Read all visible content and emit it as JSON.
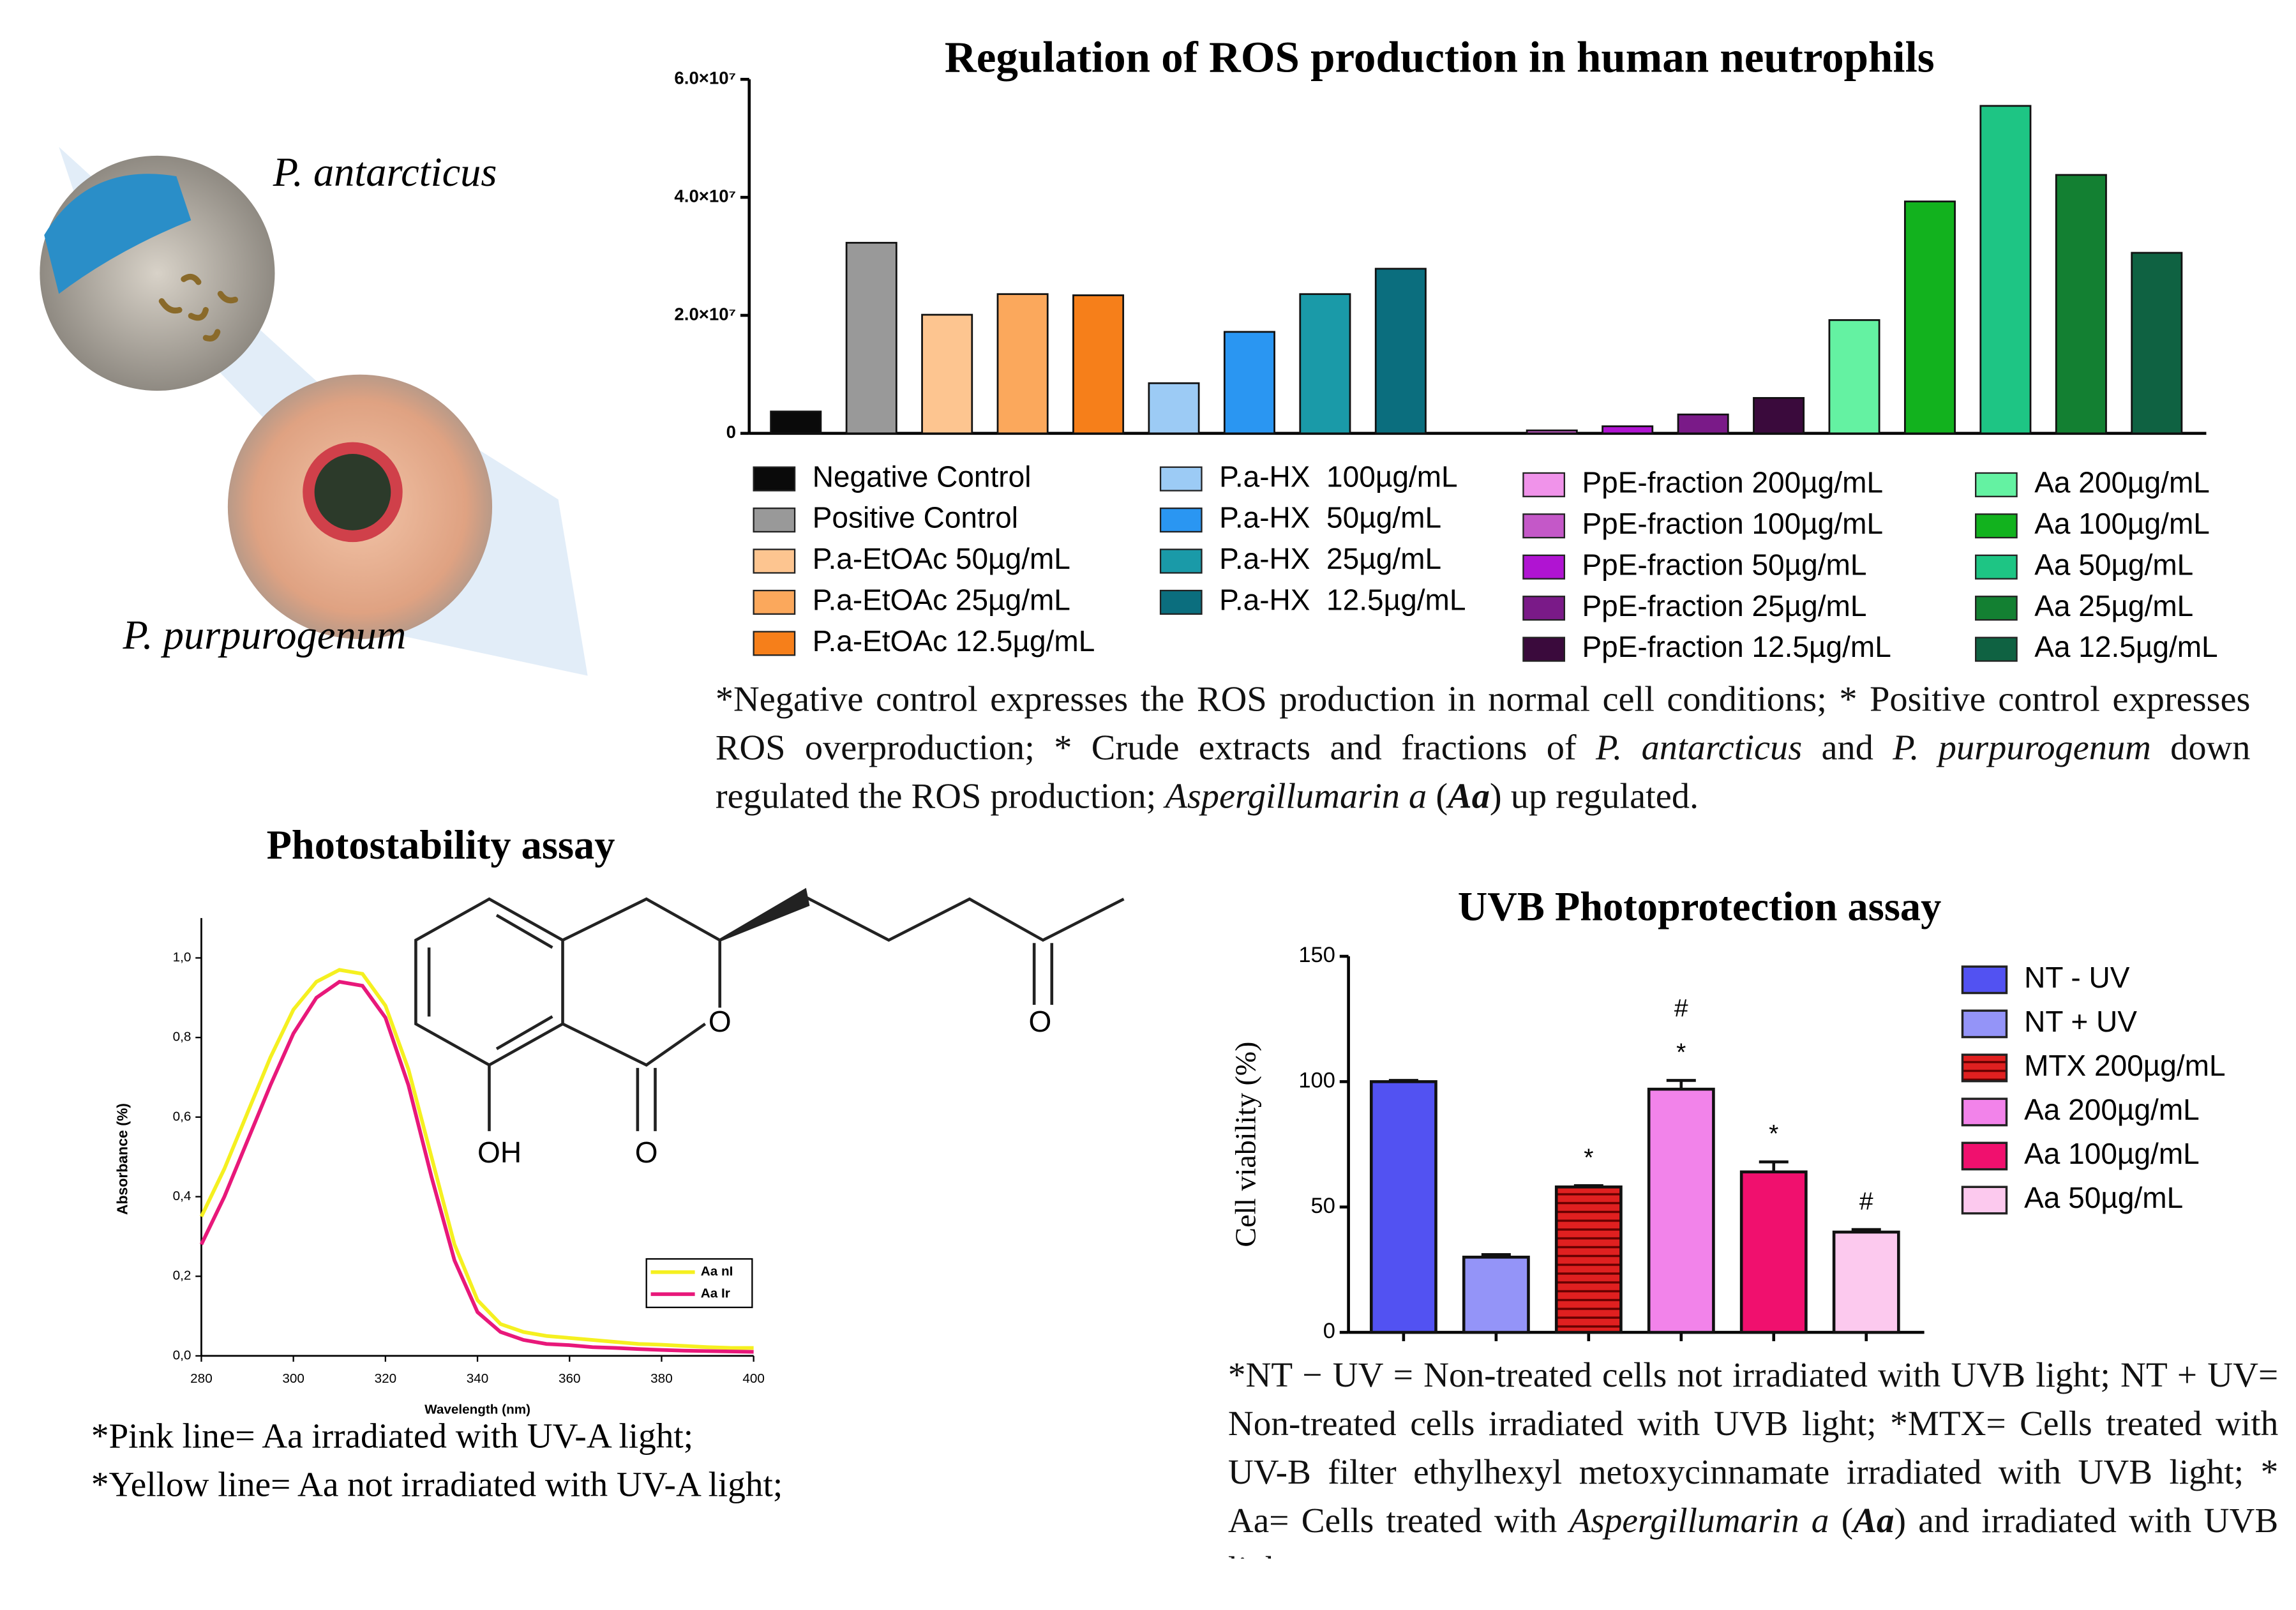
{
  "illustration": {
    "labels": [
      "P. antarcticus",
      "P. purpurogenum"
    ]
  },
  "structure": {
    "atoms": [
      "OH",
      "O",
      "O",
      "O"
    ]
  },
  "chart_data": [
    {
      "type": "bar",
      "title": "Regulation of ROS production in human neutrophils",
      "categories": [
        "Negative Control",
        "Positive Control",
        "P.a-EtOAc 50µg/mL",
        "P.a-EtOAc 25µg/mL",
        "P.a-EtOAc 12.5µg/mL",
        "P.a-HX  100µg/mL",
        "P.a-HX  50µg/mL",
        "P.a-HX  25µg/mL",
        "P.a-HX  12.5µg/mL",
        "PpE-fraction 200µg/mL",
        "PpE-fraction 100µg/mL",
        "PpE-fraction 50µg/mL",
        "PpE-fraction 25µg/mL",
        "PpE-fraction 12.5µg/mL",
        "Aa 200µg/mL",
        "Aa 100µg/mL",
        "Aa 50µg/mL",
        "Aa 25µg/mL",
        "Aa 12.5µg/mL"
      ],
      "values": [
        3700000,
        32300000,
        20100000,
        23600000,
        23400000,
        8500000,
        17200000,
        23600000,
        27900000,
        0,
        500000,
        1200000,
        3200000,
        6000000,
        19200000,
        39300000,
        55500000,
        43800000,
        30600000
      ],
      "colors": [
        "#0a0a0a",
        "#999999",
        "#fdc590",
        "#fba85c",
        "#f67f1a",
        "#9ccbf5",
        "#2a96f2",
        "#1a9aa8",
        "#0b6e7e",
        "#f093ea",
        "#c458c8",
        "#b014d2",
        "#7a1a88",
        "#3a0a3c",
        "#64f2a2",
        "#12b21e",
        "#1ec584",
        "#138032",
        "#0f6242"
      ],
      "ylim": [
        0,
        60000000
      ],
      "yticks": [
        0,
        {
          "value": 20000000,
          "label": "2.0×10⁷"
        },
        {
          "value": 40000000,
          "label": "4.0×10⁷"
        },
        {
          "value": 60000000,
          "label": "6.0×10⁷"
        }
      ],
      "legend": "bottom",
      "note": [
        {
          "text": "*Negative control expresses the ROS production in normal cell conditions; * Positive control expresses ROS overproduction; * Crude extracts and fractions of "
        },
        {
          "text": "P. antarcticus",
          "style": "italic"
        },
        {
          "text": " and "
        },
        {
          "text": "P. purpurogenum",
          "style": "italic"
        },
        {
          "text": " down regulated the ROS production; "
        },
        {
          "text": "Aspergillumarin a",
          "style": "italic"
        },
        {
          "text": " ("
        },
        {
          "text": "Aa",
          "style": "bold-italic"
        },
        {
          "text": ") up regulated."
        }
      ]
    },
    {
      "type": "line",
      "title": "Photostability assay",
      "xlabel": "Wavelength (nm)",
      "ylabel": "Absorbance (%)",
      "x": [
        280,
        285,
        290,
        295,
        300,
        305,
        310,
        315,
        320,
        325,
        330,
        335,
        340,
        345,
        350,
        355,
        360,
        365,
        370,
        375,
        380,
        385,
        390,
        395,
        400
      ],
      "series": [
        {
          "name": "Aa nI",
          "color": "#f5f020",
          "values": [
            0.35,
            0.47,
            0.61,
            0.75,
            0.87,
            0.94,
            0.97,
            0.96,
            0.88,
            0.72,
            0.5,
            0.28,
            0.14,
            0.08,
            0.06,
            0.05,
            0.045,
            0.04,
            0.035,
            0.03,
            0.028,
            0.025,
            0.022,
            0.02,
            0.02
          ]
        },
        {
          "name": "Aa Ir",
          "color": "#e8187a",
          "values": [
            0.28,
            0.4,
            0.54,
            0.68,
            0.81,
            0.9,
            0.94,
            0.93,
            0.85,
            0.68,
            0.45,
            0.24,
            0.11,
            0.06,
            0.04,
            0.03,
            0.027,
            0.022,
            0.02,
            0.017,
            0.015,
            0.013,
            0.012,
            0.011,
            0.01
          ]
        }
      ],
      "xlim": [
        280,
        400
      ],
      "xticks": [
        280,
        300,
        320,
        340,
        360,
        380,
        400
      ],
      "ylim": [
        0,
        1.1
      ],
      "yticks": [
        {
          "value": 0,
          "label": "0,0"
        },
        {
          "value": 0.2,
          "label": "0,2"
        },
        {
          "value": 0.4,
          "label": "0,4"
        },
        {
          "value": 0.6,
          "label": "0,6"
        },
        {
          "value": 0.8,
          "label": "0,8"
        },
        {
          "value": 1,
          "label": "1,0"
        }
      ],
      "legend": "lower right",
      "notes": [
        "*Pink line= Aa irradiated with UV-A light;",
        "*Yellow line= Aa not irradiated with UV-A light;"
      ]
    },
    {
      "type": "bar",
      "title": "UVB Photoprotection assay",
      "ylabel": "Cell viability (%)",
      "categories": [
        "NT - UV",
        "NT + UV",
        "MTX 200µg/mL",
        "Aa 200µg/mL",
        "Aa 100µg/mL",
        "Aa 50µg/mL"
      ],
      "values": [
        100,
        30,
        58,
        97,
        64,
        40
      ],
      "errors": [
        0.5,
        1,
        0.5,
        3.5,
        4,
        1
      ],
      "colors": [
        "#5252f2",
        "#9494f8",
        "#e02020",
        "#f283ea",
        "#f0106e",
        "#fcc9ee"
      ],
      "hatch": [
        null,
        null,
        "horizontal",
        null,
        null,
        null
      ],
      "annotations": [
        null,
        null,
        [
          "*"
        ],
        [
          "#",
          "*"
        ],
        [
          "*"
        ],
        [
          "#"
        ]
      ],
      "ylim": [
        0,
        150
      ],
      "yticks": [
        0,
        50,
        100,
        150
      ],
      "legend": "right",
      "note": [
        {
          "text": "*NT − UV = Non-treated cells not irradiated with UVB light; NT + UV= Non-treated cells irradiated with UVB light; *MTX= Cells treated with UV-B filter ethylhexyl metoxycinnamate irradiated with UVB light; * Aa= Cells treated with "
        },
        {
          "text": "Aspergillumarin a",
          "style": "italic"
        },
        {
          "text": " ("
        },
        {
          "text": "Aa",
          "style": "bold-italic"
        },
        {
          "text": ") and irradiated with UVB light."
        }
      ]
    }
  ]
}
